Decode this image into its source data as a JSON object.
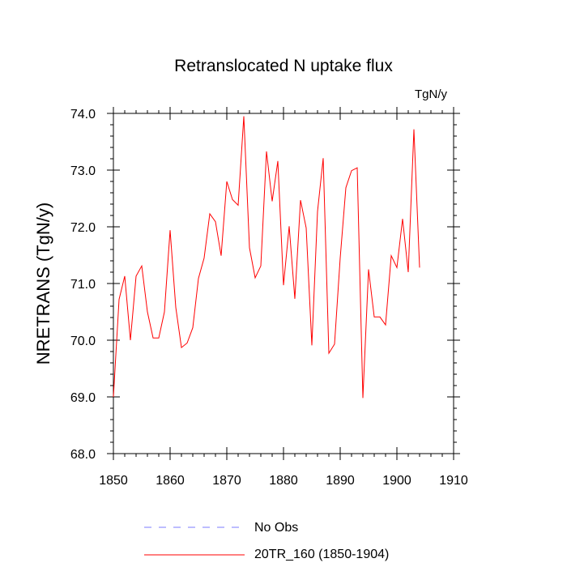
{
  "chart_data": {
    "type": "line",
    "title": "Retranslocated N uptake flux",
    "units_label": "TgN/y",
    "xlabel": "",
    "ylabel": "NRETRANS  (TgN/y)",
    "xlim": [
      1850,
      1910
    ],
    "ylim": [
      68.0,
      74.0
    ],
    "x_ticks": [
      1850,
      1860,
      1870,
      1880,
      1890,
      1900,
      1910
    ],
    "y_ticks": [
      68.0,
      69.0,
      70.0,
      71.0,
      72.0,
      73.0,
      74.0
    ],
    "y_tick_labels": [
      "68.0",
      "69.0",
      "70.0",
      "71.0",
      "72.0",
      "73.0",
      "74.0"
    ],
    "series": [
      {
        "name": "20TR_160 (1850-1904)",
        "color": "#ff0000",
        "x": [
          1850,
          1851,
          1852,
          1853,
          1854,
          1855,
          1856,
          1857,
          1858,
          1859,
          1860,
          1861,
          1862,
          1863,
          1864,
          1865,
          1866,
          1867,
          1868,
          1869,
          1870,
          1871,
          1872,
          1873,
          1874,
          1875,
          1876,
          1877,
          1878,
          1879,
          1880,
          1881,
          1882,
          1883,
          1884,
          1885,
          1886,
          1887,
          1888,
          1889,
          1890,
          1891,
          1892,
          1893,
          1894,
          1895,
          1896,
          1897,
          1898,
          1899,
          1900,
          1901,
          1902,
          1903,
          1904
        ],
        "values": [
          69.0,
          70.72,
          71.13,
          70.0,
          71.13,
          71.31,
          70.5,
          70.04,
          70.04,
          70.5,
          71.94,
          70.58,
          69.87,
          69.95,
          70.22,
          71.09,
          71.45,
          72.23,
          72.09,
          71.49,
          72.8,
          72.48,
          72.38,
          73.95,
          71.63,
          71.1,
          71.31,
          73.33,
          72.45,
          73.16,
          70.97,
          72.01,
          70.73,
          72.47,
          71.98,
          69.91,
          72.27,
          73.21,
          69.77,
          69.93,
          71.45,
          72.69,
          72.99,
          73.04,
          68.98,
          71.25,
          70.41,
          70.41,
          70.27,
          71.49,
          71.28,
          72.14,
          71.2,
          73.72,
          71.28
        ]
      }
    ],
    "legend": [
      {
        "label": "No Obs",
        "color": "#7b7bff",
        "style": "dashed"
      },
      {
        "label": "20TR_160 (1850-1904)",
        "color": "#ff0000",
        "style": "solid"
      }
    ],
    "legend_position": "bottom-center",
    "grid": false
  }
}
